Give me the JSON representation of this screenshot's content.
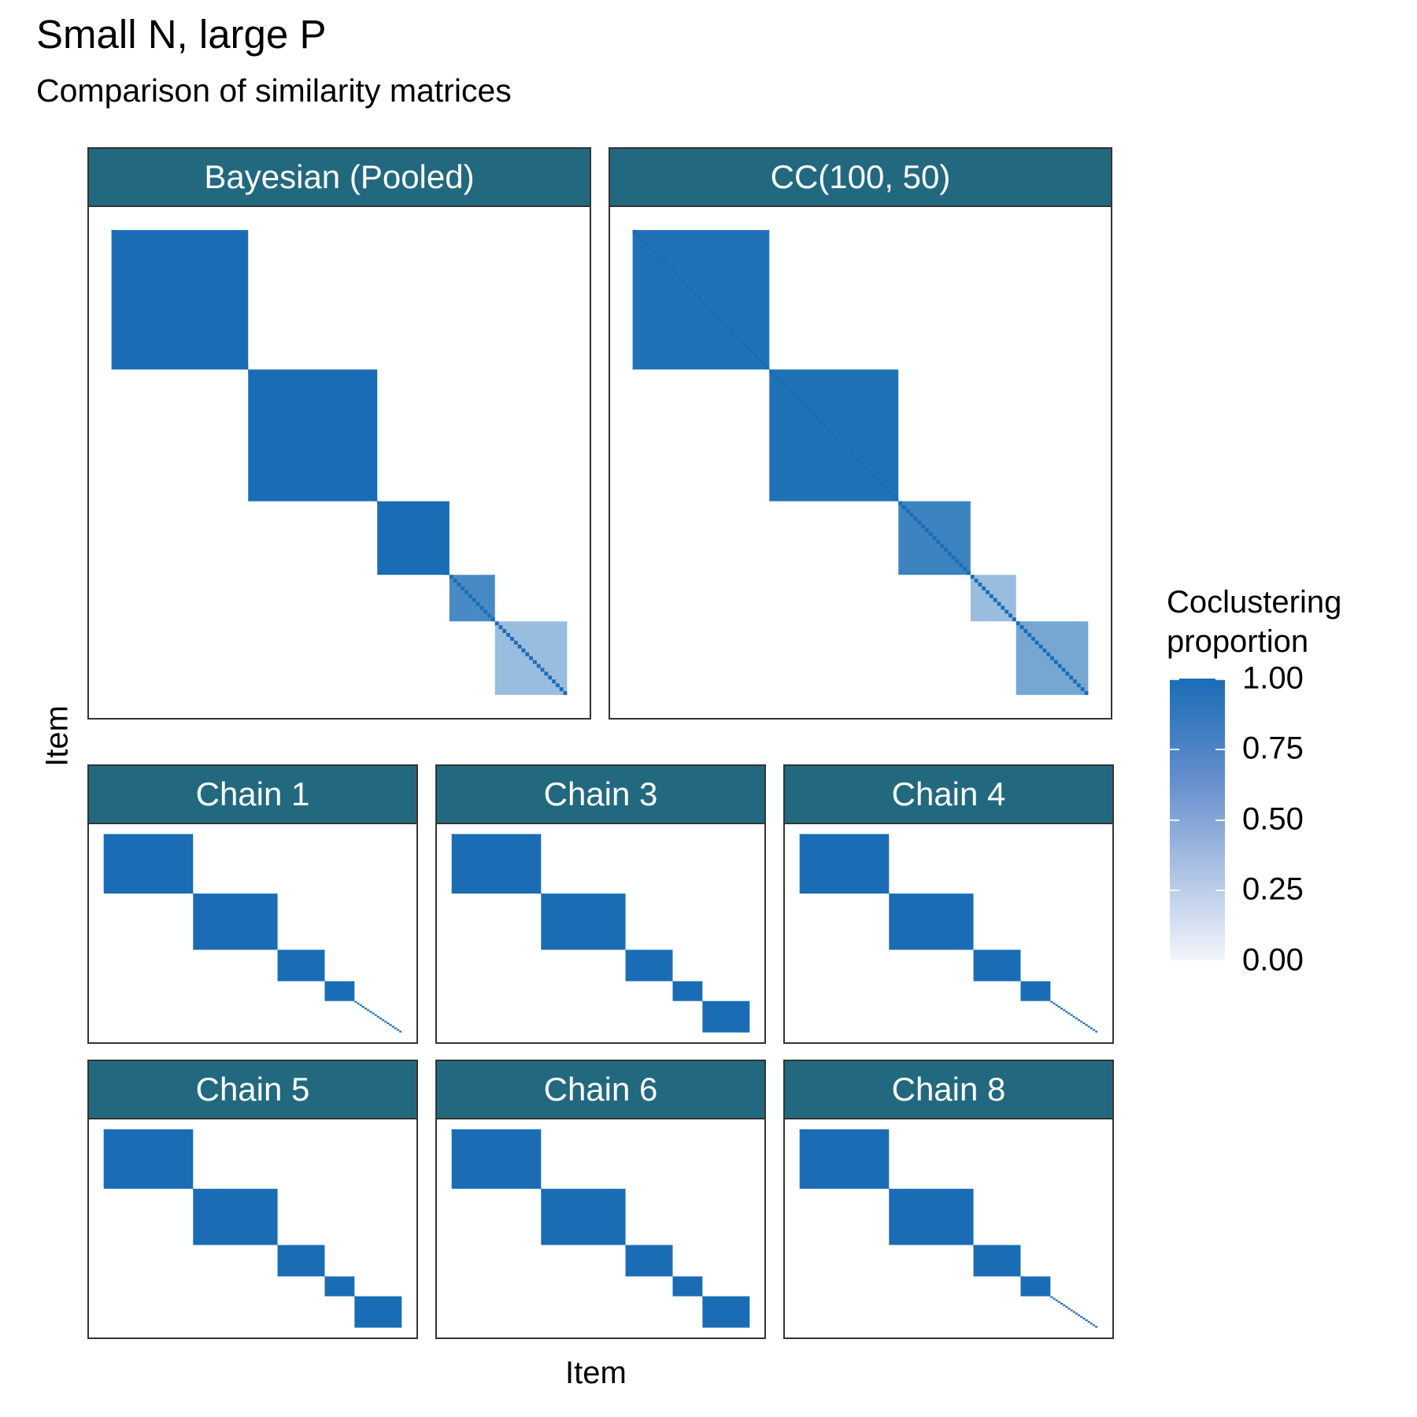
{
  "title": "Small N, large P",
  "subtitle": "Comparison of similarity matrices",
  "xlabel": "Item",
  "ylabel": "Item",
  "legend": {
    "title_line1": "Coclustering",
    "title_line2": "proportion",
    "ticks": [
      "1.00",
      "0.75",
      "0.50",
      "0.25",
      "0.00"
    ],
    "low_color": "#FFFFFF",
    "high_color": "#1A6DB5"
  },
  "colors": {
    "strip": "#22697F",
    "high": "#1A6DB5"
  },
  "chart_data": {
    "type": "heatmap",
    "n_items": 120,
    "value_range": [
      0,
      1
    ],
    "facets": [
      {
        "label": "Bayesian (Pooled)",
        "blocks": [
          {
            "start": 0,
            "size": 36,
            "value": 1.0
          },
          {
            "start": 36,
            "size": 34,
            "value": 1.0
          },
          {
            "start": 70,
            "size": 19,
            "value": 1.0
          },
          {
            "start": 89,
            "size": 12,
            "value": 0.8
          },
          {
            "start": 101,
            "size": 19,
            "value": 0.45
          }
        ]
      },
      {
        "label": "CC(100, 50)",
        "blocks": [
          {
            "start": 0,
            "size": 36,
            "value": 0.97
          },
          {
            "start": 36,
            "size": 34,
            "value": 0.97
          },
          {
            "start": 70,
            "size": 19,
            "value": 0.85
          },
          {
            "start": 89,
            "size": 12,
            "value": 0.45
          },
          {
            "start": 101,
            "size": 19,
            "value": 0.6
          }
        ]
      },
      {
        "label": "Chain 1",
        "blocks": [
          {
            "start": 0,
            "size": 36,
            "value": 1.0
          },
          {
            "start": 36,
            "size": 34,
            "value": 1.0
          },
          {
            "start": 70,
            "size": 19,
            "value": 1.0
          },
          {
            "start": 89,
            "size": 12,
            "value": 1.0
          }
        ]
      },
      {
        "label": "Chain 3",
        "blocks": [
          {
            "start": 0,
            "size": 36,
            "value": 1.0
          },
          {
            "start": 36,
            "size": 34,
            "value": 1.0
          },
          {
            "start": 70,
            "size": 19,
            "value": 1.0
          },
          {
            "start": 89,
            "size": 12,
            "value": 1.0
          },
          {
            "start": 101,
            "size": 19,
            "value": 1.0
          }
        ]
      },
      {
        "label": "Chain 4",
        "blocks": [
          {
            "start": 0,
            "size": 36,
            "value": 1.0
          },
          {
            "start": 36,
            "size": 34,
            "value": 1.0
          },
          {
            "start": 70,
            "size": 19,
            "value": 1.0
          },
          {
            "start": 89,
            "size": 12,
            "value": 1.0
          }
        ]
      },
      {
        "label": "Chain 5",
        "blocks": [
          {
            "start": 0,
            "size": 36,
            "value": 1.0
          },
          {
            "start": 36,
            "size": 34,
            "value": 1.0
          },
          {
            "start": 70,
            "size": 19,
            "value": 1.0
          },
          {
            "start": 89,
            "size": 12,
            "value": 1.0
          },
          {
            "start": 101,
            "size": 19,
            "value": 1.0
          }
        ]
      },
      {
        "label": "Chain 6",
        "blocks": [
          {
            "start": 0,
            "size": 36,
            "value": 1.0
          },
          {
            "start": 36,
            "size": 34,
            "value": 1.0
          },
          {
            "start": 70,
            "size": 19,
            "value": 1.0
          },
          {
            "start": 89,
            "size": 12,
            "value": 1.0
          },
          {
            "start": 101,
            "size": 19,
            "value": 1.0
          }
        ]
      },
      {
        "label": "Chain 8",
        "blocks": [
          {
            "start": 0,
            "size": 36,
            "value": 1.0
          },
          {
            "start": 36,
            "size": 34,
            "value": 1.0
          },
          {
            "start": 70,
            "size": 19,
            "value": 1.0
          },
          {
            "start": 89,
            "size": 12,
            "value": 1.0
          }
        ]
      }
    ]
  }
}
